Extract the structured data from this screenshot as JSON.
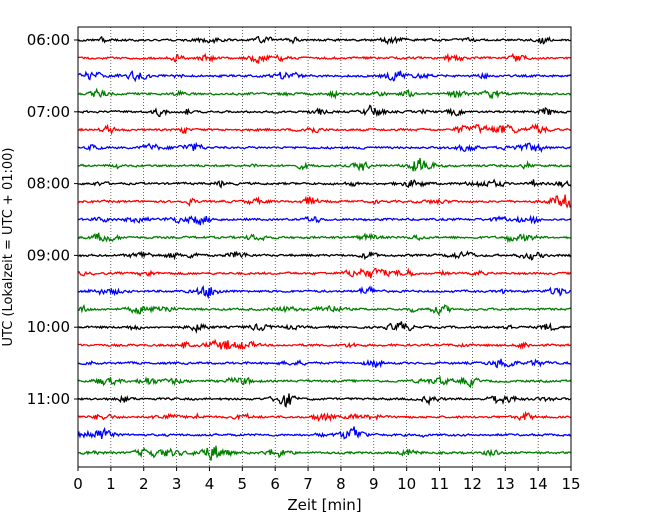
{
  "chart_data": {
    "type": "line",
    "title": "",
    "xlabel": "Zeit  [min]",
    "ylabel": "UTC (Lokalzeit = UTC + 01:00)",
    "xlim": [
      0,
      15
    ],
    "x_ticks": [
      0,
      1,
      2,
      3,
      4,
      5,
      6,
      7,
      8,
      9,
      10,
      11,
      12,
      13,
      14,
      15
    ],
    "x_tick_labels": [
      "0",
      "1",
      "2",
      "3",
      "4",
      "5",
      "6",
      "7",
      "8",
      "9",
      "10",
      "11",
      "12",
      "13",
      "14",
      "15"
    ],
    "y_tick_labels": [
      "06:00",
      "07:00",
      "08:00",
      "09:00",
      "10:00",
      "11:00"
    ],
    "y_tick_trace_index": [
      0,
      4,
      8,
      12,
      16,
      20
    ],
    "trace_start_times": [
      "06:00",
      "06:15",
      "06:30",
      "06:45",
      "07:00",
      "07:15",
      "07:30",
      "07:45",
      "08:00",
      "08:15",
      "08:30",
      "08:45",
      "09:00",
      "09:15",
      "09:30",
      "09:45",
      "10:00",
      "10:15",
      "10:30",
      "10:45",
      "11:00",
      "11:15",
      "11:30",
      "11:45"
    ],
    "trace_minutes": 15,
    "colors": [
      "#000000",
      "#ff0000",
      "#0000ff",
      "#007f00"
    ],
    "grid": "vertical dotted"
  }
}
